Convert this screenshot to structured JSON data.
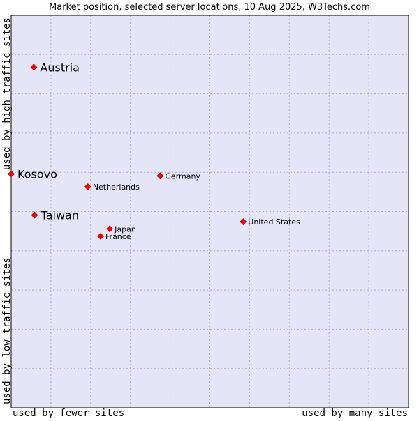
{
  "chart_data": {
    "type": "scatter",
    "title": "Market position, selected server locations, 10 Aug 2025, W3Techs.com",
    "xlabel_left": "used by fewer sites",
    "xlabel_right": "used by many sites",
    "ylabel_bottom": "used by low traffic sites",
    "ylabel_top": "used by high traffic sites",
    "xlim": [
      0,
      100
    ],
    "ylim": [
      0,
      100
    ],
    "grid": true,
    "colors": {
      "plot_background": "#e4e6f8",
      "grid": "#a7aac5",
      "marker": "#ff0000",
      "text": "#000000"
    },
    "points": [
      {
        "label": "Austria",
        "x": 5.7,
        "y": 86.8,
        "highlight": true
      },
      {
        "label": "Kosovo",
        "x": 0.0,
        "y": 59.6,
        "highlight": true
      },
      {
        "label": "Taiwan",
        "x": 5.9,
        "y": 49.1,
        "highlight": true
      },
      {
        "label": "Germany",
        "x": 37.5,
        "y": 59.1,
        "highlight": false
      },
      {
        "label": "Netherlands",
        "x": 19.3,
        "y": 56.3,
        "highlight": false
      },
      {
        "label": "United States",
        "x": 58.4,
        "y": 47.4,
        "highlight": false
      },
      {
        "label": "Japan",
        "x": 24.8,
        "y": 45.6,
        "highlight": false
      },
      {
        "label": "France",
        "x": 22.5,
        "y": 43.7,
        "highlight": false
      }
    ]
  }
}
